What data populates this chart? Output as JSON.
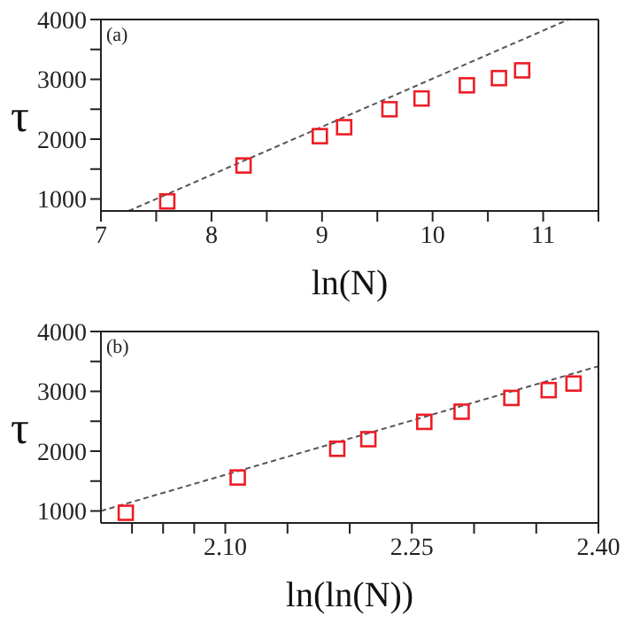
{
  "chart_data": [
    {
      "type": "scatter",
      "xlabel": "ln(N)",
      "ylabel": "τ",
      "annotations": [
        "(a)"
      ],
      "xlim": [
        7,
        11.5
      ],
      "xticks": [
        7,
        {
          "value": 7.5,
          "label": null
        },
        8,
        {
          "value": 8.5,
          "label": null
        },
        9,
        {
          "value": 9.5,
          "label": null
        },
        10,
        {
          "value": 10.5,
          "label": null
        },
        11,
        {
          "value": 11.5,
          "label": null
        }
      ],
      "ylim": [
        800,
        4000
      ],
      "yticks": [
        1000,
        {
          "value": 1500,
          "label": null
        },
        2000,
        {
          "value": 2500,
          "label": null
        },
        3000,
        {
          "value": 3500,
          "label": null
        },
        4000
      ],
      "marker": "square",
      "series": [
        {
          "color": "#ee1c25",
          "x": [
            7.6,
            8.29,
            8.98,
            9.2,
            9.61,
            9.9,
            10.31,
            10.6,
            10.81
          ],
          "values": [
            960,
            1560,
            2050,
            2200,
            2500,
            2680,
            2900,
            3020,
            3150
          ]
        },
        {
          "type": "line",
          "color": "#555555",
          "line_style": "dashed",
          "marker": "none",
          "x": [
            7.25,
            11.23
          ],
          "values": [
            800,
            4000
          ]
        }
      ]
    },
    {
      "type": "scatter",
      "xlabel": "ln(ln(N))",
      "ylabel": "τ",
      "annotations": [
        "(b)"
      ],
      "xlim": [
        2.0,
        2.4
      ],
      "xticks": [
        {
          "value": 2.025,
          "label": null
        },
        {
          "value": 2.05,
          "label": null
        },
        {
          "value": 2.075,
          "label": null
        },
        {
          "value": 2.1,
          "label": "2.10"
        },
        {
          "value": 2.15,
          "label": null
        },
        {
          "value": 2.2,
          "label": null
        },
        {
          "value": 2.25,
          "label": "2.25"
        },
        {
          "value": 2.3,
          "label": null
        },
        {
          "value": 2.35,
          "label": null
        },
        {
          "value": 2.4,
          "label": "2.40"
        }
      ],
      "ylim": [
        800,
        4000
      ],
      "yticks": [
        1000,
        {
          "value": 1500,
          "label": null
        },
        2000,
        {
          "value": 2500,
          "label": null
        },
        3000,
        {
          "value": 3500,
          "label": null
        },
        4000
      ],
      "marker": "square",
      "series": [
        {
          "color": "#ee1c25",
          "x": [
            2.02,
            2.11,
            2.19,
            2.215,
            2.26,
            2.29,
            2.33,
            2.36,
            2.38
          ],
          "values": [
            970,
            1560,
            2040,
            2200,
            2490,
            2660,
            2890,
            3020,
            3130
          ]
        },
        {
          "type": "line",
          "color": "#555555",
          "line_style": "dashed",
          "marker": "none",
          "x": [
            2.0,
            2.4
          ],
          "values": [
            1000,
            3420
          ]
        }
      ]
    }
  ]
}
